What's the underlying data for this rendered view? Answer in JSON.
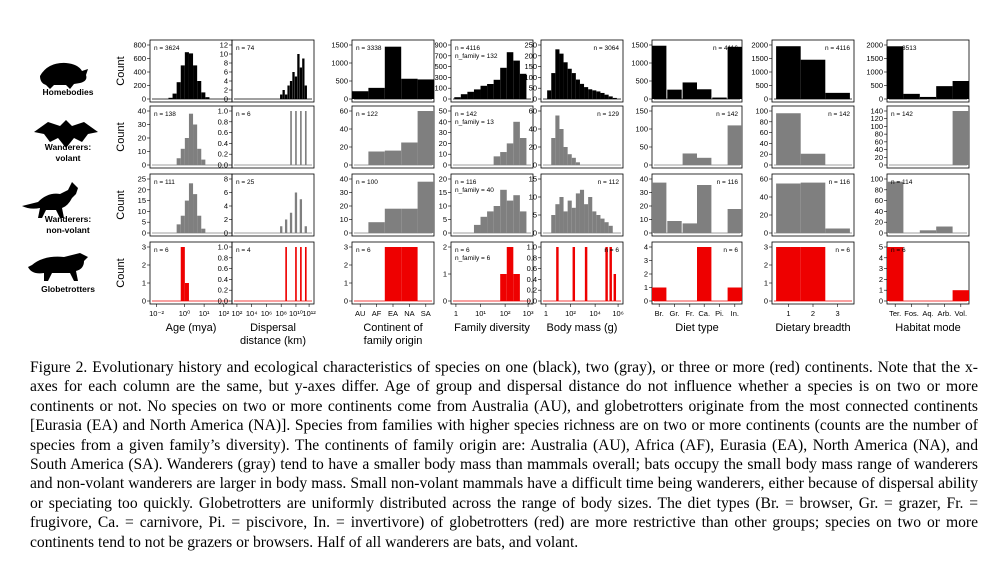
{
  "rows": [
    {
      "name": "homebodies",
      "label": [
        "Homebodies"
      ],
      "color": "#000000"
    },
    {
      "name": "wanderers-volant",
      "label": [
        "Wanderers:",
        "volant"
      ],
      "color": "#7f7f7f"
    },
    {
      "name": "wanderers-non-volant",
      "label": [
        "Wanderers:",
        "non-volant"
      ],
      "color": "#7f7f7f"
    },
    {
      "name": "globetrotters",
      "label": [
        "Globetrotters"
      ],
      "color": "#ee0000"
    }
  ],
  "count_label": "Count",
  "columns": [
    {
      "name": "age",
      "xlabel": [
        "Age (mya)"
      ],
      "ticks": [
        "10⁻²",
        "10⁰",
        "10¹",
        "10²"
      ],
      "tick_pos": [
        0.08,
        0.42,
        0.66,
        0.9
      ]
    },
    {
      "name": "dispersal",
      "xlabel": [
        "Dispersal",
        "distance (km)"
      ],
      "ticks": [
        "10²",
        "10⁴",
        "10⁶",
        "10⁸",
        "10¹⁰",
        "10¹²"
      ],
      "tick_pos": [
        0.06,
        0.24,
        0.42,
        0.6,
        0.78,
        0.94
      ]
    },
    {
      "name": "continent",
      "xlabel": [
        "Continent of",
        "family origin"
      ],
      "ticks": [
        "AU",
        "AF",
        "EA",
        "NA",
        "SA"
      ],
      "tick_pos": [
        0.1,
        0.3,
        0.5,
        0.7,
        0.9
      ]
    },
    {
      "name": "family-diversity",
      "xlabel": [
        "Family diversity"
      ],
      "ticks": [
        "1",
        "10¹",
        "10²",
        "10³"
      ],
      "tick_pos": [
        0.06,
        0.36,
        0.66,
        0.94
      ]
    },
    {
      "name": "body-mass",
      "xlabel": [
        "Body mass (g)"
      ],
      "ticks": [
        "1",
        "10²",
        "10⁴",
        "10⁶"
      ],
      "tick_pos": [
        0.06,
        0.36,
        0.66,
        0.94
      ]
    },
    {
      "name": "diet-type",
      "xlabel": [
        "Diet type"
      ],
      "ticks": [
        "Br.",
        "Gr.",
        "Fr.",
        "Ca.",
        "Pi.",
        "In."
      ],
      "tick_pos": [
        0.08,
        0.25,
        0.42,
        0.58,
        0.75,
        0.92
      ]
    },
    {
      "name": "dietary-breadth",
      "xlabel": [
        "Dietary breadth"
      ],
      "ticks": [
        "1",
        "2",
        "3"
      ],
      "tick_pos": [
        0.2,
        0.5,
        0.8
      ]
    },
    {
      "name": "habitat-mode",
      "xlabel": [
        "Habitat mode"
      ],
      "ticks": [
        "Ter.",
        "Fos.",
        "Aq.",
        "Arb.",
        "Vol."
      ],
      "tick_pos": [
        0.1,
        0.3,
        0.5,
        0.7,
        0.9
      ]
    }
  ],
  "chart_data": [
    {
      "type": "bar",
      "row": 0,
      "col": 0,
      "n": "n = 3624",
      "ylim": [
        0,
        900
      ],
      "yticks": [
        "0",
        "200",
        "400",
        "600",
        "800"
      ],
      "x": [
        0.25,
        0.3,
        0.35,
        0.4,
        0.45,
        0.5,
        0.55,
        0.6,
        0.65,
        0.7
      ],
      "values": [
        20,
        90,
        280,
        560,
        780,
        760,
        560,
        300,
        110,
        30
      ],
      "w": 0.05
    },
    {
      "type": "bar",
      "row": 0,
      "col": 1,
      "n": "n = 74",
      "ylim": [
        0,
        12
      ],
      "yticks": [
        "0",
        "2",
        "4",
        "6",
        "8",
        "10",
        "12"
      ],
      "x": [
        0.6,
        0.63,
        0.66,
        0.69,
        0.72,
        0.75,
        0.78,
        0.81,
        0.84,
        0.87,
        0.9
      ],
      "values": [
        1,
        2,
        1,
        3,
        4,
        6,
        5,
        10,
        7,
        9,
        3
      ],
      "w": 0.028
    },
    {
      "type": "bar",
      "row": 0,
      "col": 2,
      "n": "n = 3338",
      "ylim": [
        0,
        1600
      ],
      "yticks": [
        "0",
        "500",
        "1000",
        "1500"
      ],
      "x": [
        0.1,
        0.3,
        0.5,
        0.7,
        0.9
      ],
      "values": [
        230,
        330,
        1550,
        600,
        580
      ],
      "w": 0.2
    },
    {
      "type": "bar",
      "row": 0,
      "col": 3,
      "n": "n = 4116",
      "nfam": "n_family = 132",
      "ylim": [
        0,
        900
      ],
      "yticks": [
        "0",
        "100",
        "300",
        "500",
        "700",
        "900"
      ],
      "x": [
        0.08,
        0.16,
        0.24,
        0.32,
        0.4,
        0.48,
        0.56,
        0.64,
        0.72,
        0.8,
        0.88
      ],
      "values": [
        30,
        80,
        120,
        160,
        220,
        250,
        320,
        520,
        780,
        640,
        420
      ],
      "w": 0.08
    },
    {
      "type": "bar",
      "row": 0,
      "col": 4,
      "n": "n = 3064",
      "ylim": [
        0,
        250
      ],
      "yticks": [
        "0",
        "50",
        "100",
        "150",
        "200",
        "250"
      ],
      "x": [
        0.1,
        0.15,
        0.2,
        0.25,
        0.3,
        0.35,
        0.4,
        0.45,
        0.5,
        0.55,
        0.6,
        0.65,
        0.7,
        0.75,
        0.8,
        0.85,
        0.9
      ],
      "values": [
        40,
        120,
        230,
        210,
        170,
        140,
        120,
        90,
        70,
        55,
        45,
        40,
        35,
        28,
        20,
        12,
        5
      ],
      "w": 0.05
    },
    {
      "type": "bar",
      "row": 0,
      "col": 5,
      "n": "n = 4116",
      "ylim": [
        0,
        1500
      ],
      "yticks": [
        "0",
        "500",
        "1000",
        "1500"
      ],
      "x": [
        0.08,
        0.25,
        0.42,
        0.58,
        0.75,
        0.92
      ],
      "values": [
        1480,
        260,
        460,
        270,
        40,
        1450
      ],
      "w": 0.16
    },
    {
      "type": "bar",
      "row": 0,
      "col": 6,
      "n": "n = 4116",
      "ylim": [
        0,
        2200
      ],
      "yticks": [
        "0",
        "500",
        "1000",
        "1500",
        "2000"
      ],
      "x": [
        0.2,
        0.5,
        0.8
      ],
      "values": [
        2150,
        1600,
        250
      ],
      "w": 0.3
    },
    {
      "type": "bar",
      "row": 0,
      "col": 7,
      "n": "n = 3513",
      "ylim": [
        0,
        2100
      ],
      "yticks": [
        "0",
        "500",
        "1000",
        "1500",
        "2000"
      ],
      "x": [
        0.1,
        0.3,
        0.5,
        0.7,
        0.9
      ],
      "values": [
        2050,
        200,
        80,
        500,
        700
      ],
      "w": 0.2
    },
    {
      "type": "bar",
      "row": 1,
      "col": 0,
      "n": "n = 138",
      "ylim": [
        0,
        40
      ],
      "yticks": [
        "0",
        "10",
        "20",
        "30",
        "40"
      ],
      "x": [
        0.35,
        0.4,
        0.45,
        0.5,
        0.55,
        0.6,
        0.65
      ],
      "values": [
        5,
        12,
        20,
        38,
        30,
        12,
        4
      ],
      "w": 0.05
    },
    {
      "type": "bar",
      "row": 1,
      "col": 1,
      "n": "n = 6",
      "ylim": [
        0,
        1.0
      ],
      "yticks": [
        "0.0",
        "0.2",
        "0.4",
        "0.6",
        "0.8",
        "1.0"
      ],
      "x": [
        0.72,
        0.78,
        0.84,
        0.9
      ],
      "values": [
        1,
        1,
        1,
        1
      ],
      "w": 0.02
    },
    {
      "type": "bar",
      "row": 1,
      "col": 2,
      "n": "n = 122",
      "ylim": [
        0,
        60
      ],
      "yticks": [
        "0",
        "20",
        "40",
        "60"
      ],
      "x": [
        0.1,
        0.3,
        0.5,
        0.7,
        0.9
      ],
      "values": [
        0,
        15,
        16,
        25,
        60
      ],
      "w": 0.2
    },
    {
      "type": "bar",
      "row": 1,
      "col": 3,
      "n": "n = 142",
      "nfam": "n_family = 13",
      "ylim": [
        0,
        50
      ],
      "yticks": [
        "0",
        "10",
        "20",
        "30",
        "40",
        "50"
      ],
      "x": [
        0.56,
        0.64,
        0.72,
        0.8,
        0.88
      ],
      "values": [
        8,
        12,
        20,
        40,
        25
      ],
      "w": 0.08
    },
    {
      "type": "bar",
      "row": 1,
      "col": 4,
      "n": "n = 129",
      "ylim": [
        0,
        60
      ],
      "yticks": [
        "0",
        "20",
        "40",
        "60"
      ],
      "x": [
        0.15,
        0.2,
        0.25,
        0.3,
        0.35,
        0.4,
        0.45
      ],
      "values": [
        30,
        55,
        40,
        20,
        12,
        8,
        3
      ],
      "w": 0.05
    },
    {
      "type": "bar",
      "row": 1,
      "col": 5,
      "n": "n = 142",
      "ylim": [
        0,
        150
      ],
      "yticks": [
        "0",
        "50",
        "100",
        "150"
      ],
      "x": [
        0.42,
        0.58,
        0.92
      ],
      "values": [
        32,
        20,
        110
      ],
      "w": 0.16
    },
    {
      "type": "bar",
      "row": 1,
      "col": 6,
      "n": "n = 142",
      "ylim": [
        0,
        120
      ],
      "yticks": [
        "0",
        "20",
        "40",
        "60",
        "80",
        "100"
      ],
      "x": [
        0.2,
        0.5
      ],
      "values": [
        115,
        25
      ],
      "w": 0.3
    },
    {
      "type": "bar",
      "row": 1,
      "col": 7,
      "n": "n = 142",
      "ylim": [
        0,
        140
      ],
      "yticks": [
        "0",
        "20",
        "40",
        "60",
        "80",
        "100",
        "120",
        "140"
      ],
      "x": [
        0.9
      ],
      "values": [
        140
      ],
      "w": 0.2
    },
    {
      "type": "bar",
      "row": 2,
      "col": 0,
      "n": "n = 111",
      "ylim": [
        0,
        25
      ],
      "yticks": [
        "0",
        "5",
        "10",
        "15",
        "20",
        "25"
      ],
      "x": [
        0.35,
        0.4,
        0.45,
        0.5,
        0.55,
        0.6,
        0.65
      ],
      "values": [
        4,
        8,
        15,
        23,
        18,
        8,
        2
      ],
      "w": 0.05
    },
    {
      "type": "bar",
      "row": 2,
      "col": 1,
      "n": "n = 25",
      "ylim": [
        0,
        8
      ],
      "yticks": [
        "0",
        "2",
        "4",
        "6",
        "8"
      ],
      "x": [
        0.6,
        0.66,
        0.72,
        0.78,
        0.84,
        0.9
      ],
      "values": [
        1,
        2,
        3,
        6,
        5,
        1
      ],
      "w": 0.028
    },
    {
      "type": "bar",
      "row": 2,
      "col": 2,
      "n": "n = 100",
      "ylim": [
        0,
        40
      ],
      "yticks": [
        "0",
        "10",
        "20",
        "30",
        "40"
      ],
      "x": [
        0.3,
        0.5,
        0.7,
        0.9
      ],
      "values": [
        8,
        18,
        18,
        38
      ],
      "w": 0.2
    },
    {
      "type": "bar",
      "row": 2,
      "col": 3,
      "n": "n = 116",
      "nfam": "n_family = 40",
      "ylim": [
        0,
        20
      ],
      "yticks": [
        "0",
        "5",
        "10",
        "15",
        "20"
      ],
      "x": [
        0.32,
        0.4,
        0.48,
        0.56,
        0.64,
        0.72,
        0.8,
        0.88
      ],
      "values": [
        3,
        6,
        8,
        10,
        16,
        12,
        14,
        8
      ],
      "w": 0.08
    },
    {
      "type": "bar",
      "row": 2,
      "col": 4,
      "n": "n = 112",
      "ylim": [
        0,
        15
      ],
      "yticks": [
        "0",
        "5",
        "10",
        "15"
      ],
      "x": [
        0.15,
        0.2,
        0.25,
        0.3,
        0.35,
        0.4,
        0.45,
        0.5,
        0.55,
        0.6,
        0.65,
        0.7,
        0.75,
        0.8,
        0.85
      ],
      "values": [
        5,
        8,
        10,
        6,
        9,
        7,
        11,
        12,
        8,
        10,
        6,
        5,
        4,
        3,
        2
      ],
      "w": 0.05
    },
    {
      "type": "bar",
      "row": 2,
      "col": 5,
      "n": "n = 116",
      "ylim": [
        0,
        45
      ],
      "yticks": [
        "0",
        "10",
        "20",
        "30",
        "40"
      ],
      "x": [
        0.08,
        0.25,
        0.42,
        0.58,
        0.92
      ],
      "values": [
        42,
        10,
        8,
        40,
        20
      ],
      "w": 0.16
    },
    {
      "type": "bar",
      "row": 2,
      "col": 6,
      "n": "n = 116",
      "ylim": [
        0,
        60
      ],
      "yticks": [
        "0",
        "20",
        "40",
        "60"
      ],
      "x": [
        0.2,
        0.5,
        0.8
      ],
      "values": [
        55,
        56,
        5
      ],
      "w": 0.3
    },
    {
      "type": "bar",
      "row": 2,
      "col": 7,
      "n": "n = 114",
      "ylim": [
        0,
        100
      ],
      "yticks": [
        "0",
        "20",
        "40",
        "60",
        "80",
        "100"
      ],
      "x": [
        0.1,
        0.5,
        0.7
      ],
      "values": [
        95,
        5,
        12
      ],
      "w": 0.2
    },
    {
      "type": "bar",
      "row": 3,
      "col": 0,
      "n": "n = 6",
      "ylim": [
        0,
        3
      ],
      "yticks": [
        "0",
        "1",
        "2",
        "3"
      ],
      "x": [
        0.4,
        0.45
      ],
      "values": [
        3,
        1
      ],
      "w": 0.05
    },
    {
      "type": "bar",
      "row": 3,
      "col": 1,
      "n": "n = 4",
      "ylim": [
        0,
        1.0
      ],
      "yticks": [
        "0.0",
        "0.2",
        "0.4",
        "0.6",
        "0.8",
        "1.0"
      ],
      "x": [
        0.66,
        0.78,
        0.84,
        0.9
      ],
      "values": [
        1,
        1,
        1,
        1
      ],
      "w": 0.02
    },
    {
      "type": "bar",
      "row": 3,
      "col": 2,
      "n": "n = 6",
      "ylim": [
        0,
        3
      ],
      "yticks": [
        "0",
        "1",
        "2",
        "3"
      ],
      "x": [
        0.5,
        0.7
      ],
      "values": [
        3,
        3
      ],
      "w": 0.2
    },
    {
      "type": "bar",
      "row": 3,
      "col": 3,
      "n": "n = 6",
      "nfam": "n_family = 6",
      "ylim": [
        0,
        2
      ],
      "yticks": [
        "0",
        "1",
        "2"
      ],
      "x": [
        0.64,
        0.72,
        0.8
      ],
      "values": [
        1,
        2,
        1
      ],
      "w": 0.08
    },
    {
      "type": "bar",
      "row": 3,
      "col": 4,
      "n": "n = 6",
      "ylim": [
        0,
        1.0
      ],
      "yticks": [
        "0.0",
        "0.2",
        "0.4",
        "0.6",
        "0.8",
        "1.0"
      ],
      "x": [
        0.2,
        0.4,
        0.55,
        0.8,
        0.85,
        0.9
      ],
      "values": [
        1,
        1,
        1,
        1,
        1,
        0.5
      ],
      "w": 0.03
    },
    {
      "type": "bar",
      "row": 3,
      "col": 5,
      "n": "n = 6",
      "ylim": [
        0,
        4
      ],
      "yticks": [
        "0",
        "1",
        "2",
        "3",
        "4"
      ],
      "x": [
        0.08,
        0.58,
        0.92
      ],
      "values": [
        1,
        4,
        1
      ],
      "w": 0.16
    },
    {
      "type": "bar",
      "row": 3,
      "col": 6,
      "n": "n = 6",
      "ylim": [
        0,
        3
      ],
      "yticks": [
        "0",
        "1",
        "2",
        "3"
      ],
      "x": [
        0.2,
        0.5
      ],
      "values": [
        3,
        3
      ],
      "w": 0.3
    },
    {
      "type": "bar",
      "row": 3,
      "col": 7,
      "n": "n = 6",
      "ylim": [
        0,
        5
      ],
      "yticks": [
        "0",
        "1",
        "2",
        "3",
        "4",
        "5"
      ],
      "x": [
        0.1,
        0.9
      ],
      "values": [
        5,
        1
      ],
      "w": 0.2
    }
  ],
  "caption": {
    "label": "Figure 2.",
    "text": "Evolutionary history and ecological characteristics of species on one (black), two (gray), or three or more (red) continents. Note that the x-axes for each column are the same, but y-axes differ. Age of group and dispersal distance do not influence whether a species is on two or more continents or not. No species on two or more continents come from Australia (AU), and globetrotters originate from the most connected continents [Eurasia (EA) and North America (NA)]. Species from families with higher species richness are on two or more continents (counts are the number of species from a given family’s diversity). The continents of family origin are: Australia (AU), Africa (AF), Eurasia (EA), North America (NA), and South America (SA). Wanderers (gray) tend to have a smaller body mass than mammals overall; bats occupy the small body mass range of wanderers and non-volant wanderers are larger in body mass. Small non-volant mammals have a difficult time being wanderers, either because of dispersal ability or speciating too quickly. Globetrotters are uniformly distributed across the range of body sizes. The diet types (Br. = browser, Gr. = grazer, Fr. = frugivore, Ca. = carnivore, Pi. = piscivore, In. = invertivore) of globetrotters (red) are more restrictive than other groups; species on two or more continents tend to not be grazers or browsers. Half of all wanderers are bats, and volant."
  }
}
